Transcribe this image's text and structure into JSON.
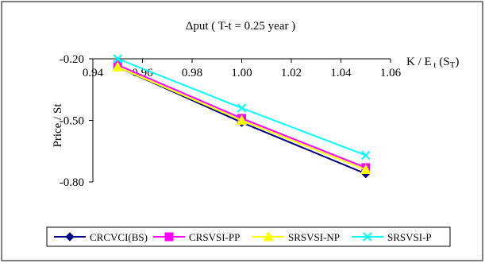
{
  "chart_data": {
    "type": "line",
    "title": "Δput ( T-t = 0.25 year )",
    "xlabel": "K / E t (ST)",
    "ylabel": "Price / St",
    "x": [
      0.95,
      1.0,
      1.05
    ],
    "xlim": [
      0.94,
      1.06
    ],
    "ylim": [
      -0.8,
      -0.2
    ],
    "x_ticks": [
      "0.94",
      "0.96",
      "0.98",
      "1.00",
      "1.02",
      "1.04",
      "1.06"
    ],
    "y_ticks": [
      "-0.20",
      "-0.50",
      "-0.80"
    ],
    "x_axis_position": "top",
    "grid": false,
    "legend_position": "bottom",
    "series": [
      {
        "name": "CRCVCI(BS)",
        "color": "#000080",
        "marker": "diamond",
        "values": [
          -0.24,
          -0.51,
          -0.76
        ]
      },
      {
        "name": "CRSVSI-PP",
        "color": "#FF00FF",
        "marker": "square",
        "values": [
          -0.23,
          -0.49,
          -0.73
        ]
      },
      {
        "name": "SRSVSI-NP",
        "color": "#FFFF00",
        "marker": "triangle",
        "values": [
          -0.24,
          -0.5,
          -0.74
        ]
      },
      {
        "name": "SRSVSI-P",
        "color": "#00FFFF",
        "marker": "x",
        "values": [
          -0.2,
          -0.44,
          -0.67
        ]
      }
    ]
  }
}
